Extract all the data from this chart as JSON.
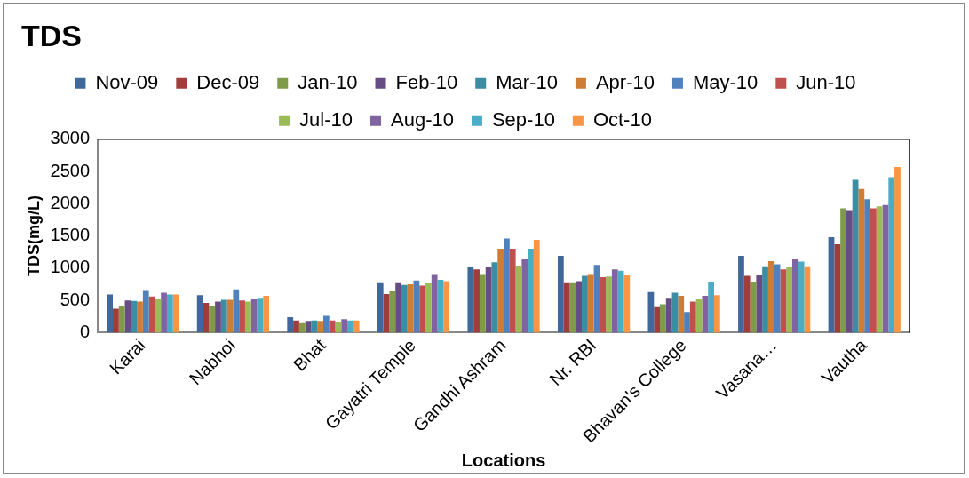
{
  "chart_data": {
    "type": "bar",
    "title": "TDS",
    "xlabel": "Locations",
    "ylabel": "TDS(mg/L)",
    "categories": [
      "Karai",
      "Nabhoi",
      "Bhat",
      "Gayatri Temple",
      "Gandhi Ashram",
      "Nr. RBI",
      "Bhavan's College",
      "Vasana…",
      "Vautha"
    ],
    "series": [
      {
        "name": "Nov-09",
        "color": "#41689a",
        "values": [
          590,
          580,
          240,
          780,
          1020,
          1190,
          630,
          1190,
          1480
        ]
      },
      {
        "name": "Dec-09",
        "color": "#9e3d3b",
        "values": [
          370,
          460,
          190,
          600,
          980,
          780,
          410,
          880,
          1370
        ]
      },
      {
        "name": "Jan-10",
        "color": "#7f9a48",
        "values": [
          420,
          420,
          160,
          640,
          910,
          780,
          440,
          790,
          1930
        ]
      },
      {
        "name": "Feb-10",
        "color": "#664e84",
        "values": [
          500,
          480,
          180,
          780,
          1020,
          800,
          540,
          890,
          1900
        ]
      },
      {
        "name": "Mar-10",
        "color": "#3a8da2",
        "values": [
          490,
          510,
          190,
          740,
          1090,
          880,
          620,
          1030,
          2370
        ]
      },
      {
        "name": "Apr-10",
        "color": "#cf7c35",
        "values": [
          480,
          510,
          180,
          750,
          1300,
          910,
          570,
          1110,
          2230
        ]
      },
      {
        "name": "May-10",
        "color": "#4f81bd",
        "values": [
          660,
          670,
          260,
          810,
          1460,
          1050,
          320,
          1060,
          2070
        ]
      },
      {
        "name": "Jun-10",
        "color": "#c0504d",
        "values": [
          560,
          500,
          190,
          730,
          1300,
          860,
          480,
          980,
          1930
        ]
      },
      {
        "name": "Jul-10",
        "color": "#9bbb59",
        "values": [
          530,
          480,
          170,
          770,
          1040,
          870,
          520,
          1020,
          1960
        ]
      },
      {
        "name": "Aug-10",
        "color": "#8064a2",
        "values": [
          620,
          520,
          210,
          910,
          1140,
          980,
          570,
          1140,
          1980
        ]
      },
      {
        "name": "Sep-10",
        "color": "#4bacc6",
        "values": [
          590,
          540,
          190,
          820,
          1300,
          960,
          790,
          1100,
          2410
        ]
      },
      {
        "name": "Oct-10",
        "color": "#f79646",
        "values": [
          590,
          570,
          190,
          800,
          1440,
          900,
          580,
          1030,
          2570
        ]
      }
    ],
    "ylim": [
      0,
      3000
    ],
    "yticks": [
      0,
      500,
      1000,
      1500,
      2000,
      2500,
      3000
    ],
    "grid": false,
    "legend": "top"
  }
}
